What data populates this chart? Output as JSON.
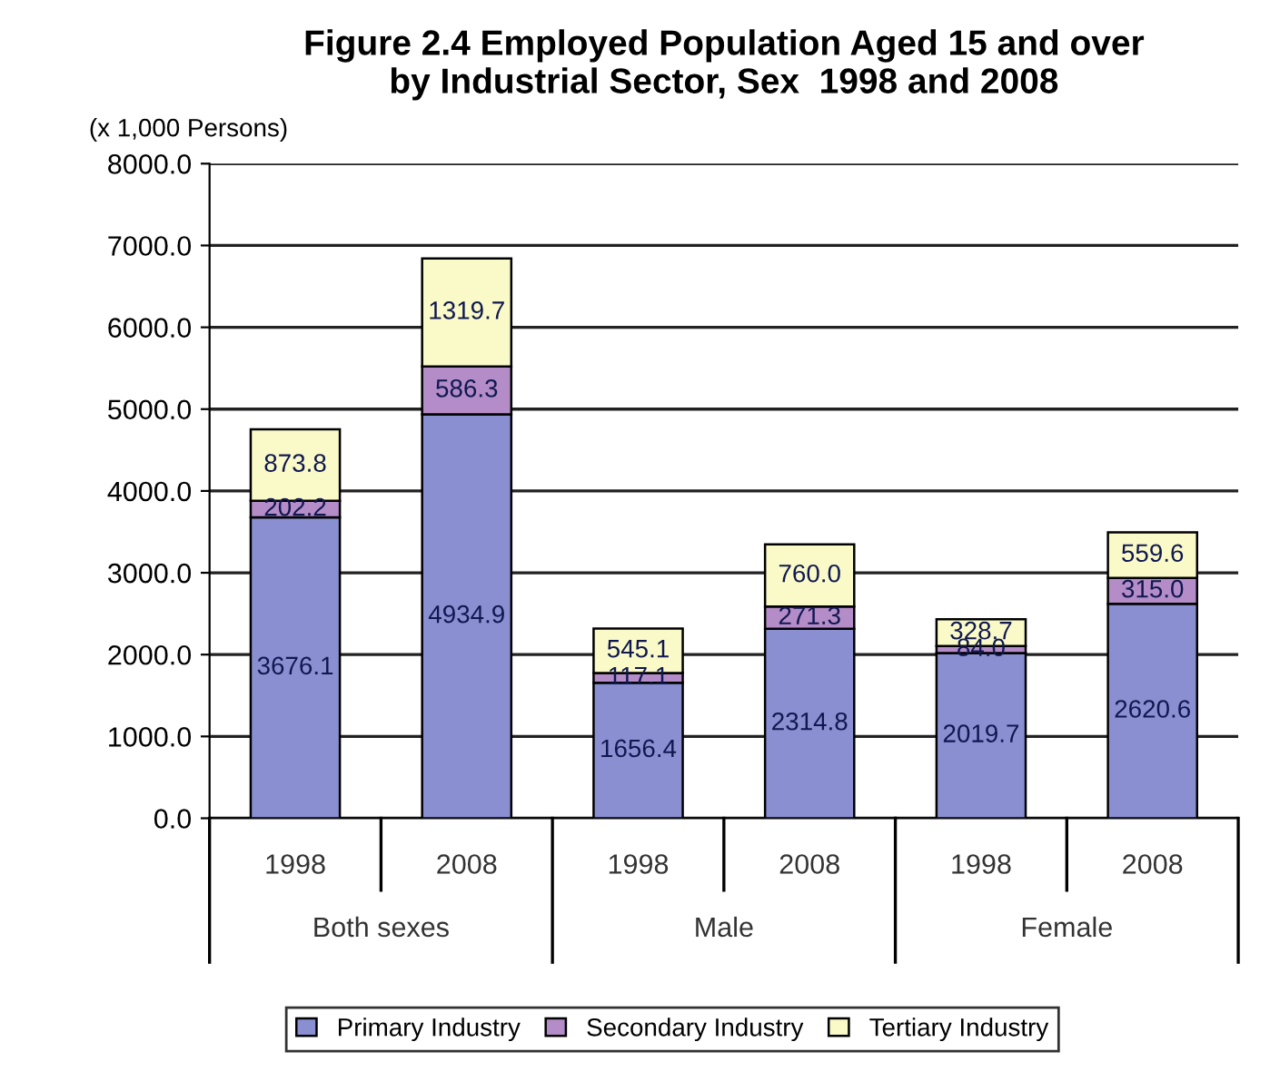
{
  "chart_data": {
    "type": "bar",
    "title": "Figure 2.4 Employed Population Aged 15 and over\nby Industrial Sector, Sex  1998 and 2008",
    "ylabel": "(x 1,000 Persons)",
    "categories": [
      "1998",
      "2008",
      "1998",
      "2008",
      "1998",
      "2008"
    ],
    "annotations": [
      "Both sexes",
      "Male",
      "Female"
    ],
    "stacked": true,
    "grid": "y",
    "legend": "bottom",
    "ylim": [
      0,
      8000
    ],
    "yticks": [
      {
        "value": 0,
        "label": "0.0"
      },
      {
        "value": 1000,
        "label": "1000.0"
      },
      {
        "value": 2000,
        "label": "2000.0"
      },
      {
        "value": 3000,
        "label": "3000.0"
      },
      {
        "value": 4000,
        "label": "4000.0"
      },
      {
        "value": 5000,
        "label": "5000.0"
      },
      {
        "value": 6000,
        "label": "6000.0"
      },
      {
        "value": 7000,
        "label": "7000.0"
      },
      {
        "value": 8000,
        "label": "8000.0"
      }
    ],
    "series": [
      {
        "name": "Primary Industry",
        "color": "#8a8fd2",
        "values": [
          3676.1,
          4934.9,
          1656.4,
          2314.8,
          2019.7,
          2620.6
        ],
        "value_labels": [
          "3676.1",
          "4934.9",
          "1656.4",
          "2314.8",
          "2019.7",
          "2620.6"
        ]
      },
      {
        "name": "Secondary Industry",
        "color": "#b48cc8",
        "values": [
          202.2,
          586.3,
          117.1,
          271.3,
          84.0,
          315.0
        ],
        "value_labels": [
          "202.2",
          "586.3",
          "117.1",
          "271.3",
          "84.0",
          "315.0"
        ]
      },
      {
        "name": "Tertiary Industry",
        "color": "#fafac8",
        "values": [
          873.8,
          1319.7,
          545.1,
          760.0,
          328.7,
          559.6
        ],
        "value_labels": [
          "873.8",
          "1319.7",
          "545.1",
          "760.0",
          "328.7",
          "559.6"
        ]
      }
    ]
  }
}
